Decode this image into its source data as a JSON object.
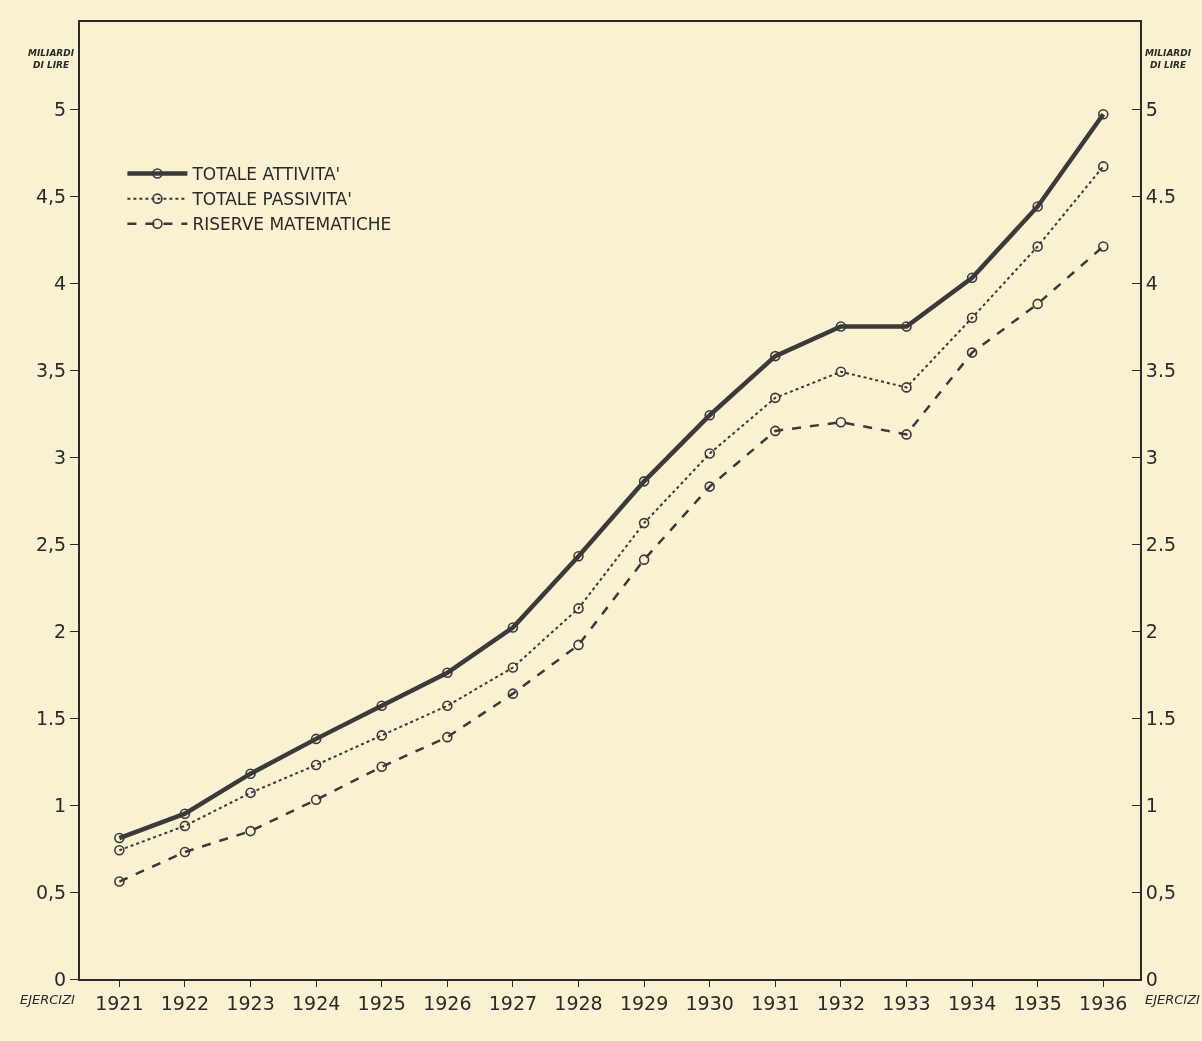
{
  "chart_data": {
    "type": "line",
    "categories": [
      "1921",
      "1922",
      "1923",
      "1924",
      "1925",
      "1926",
      "1927",
      "1928",
      "1929",
      "1930",
      "1931",
      "1932",
      "1933",
      "1934",
      "1935",
      "1936"
    ],
    "series": [
      {
        "name": "TOTALE ATTIVITA'",
        "color": "#3a3a3a",
        "line_style": "solid",
        "values": [
          0.81,
          0.95,
          1.18,
          1.38,
          1.57,
          1.76,
          2.02,
          2.43,
          2.86,
          3.24,
          3.58,
          3.75,
          3.75,
          4.03,
          4.44,
          4.97
        ]
      },
      {
        "name": "TOTALE PASSIVITA'",
        "color": "#3a3a3a",
        "line_style": "dotted",
        "values": [
          0.74,
          0.88,
          1.07,
          1.23,
          1.4,
          1.57,
          1.79,
          2.13,
          2.62,
          3.02,
          3.34,
          3.49,
          3.4,
          3.8,
          4.21,
          4.67
        ]
      },
      {
        "name": "RISERVE MATEMATICHE",
        "color": "#3a3a3a",
        "line_style": "dashed",
        "values": [
          0.56,
          0.73,
          0.85,
          1.03,
          1.22,
          1.39,
          1.64,
          1.92,
          2.41,
          2.83,
          3.15,
          3.2,
          3.13,
          3.6,
          3.88,
          4.21
        ]
      }
    ],
    "xlabel": "EJERCIZI",
    "ylabel": "MILIARDI DI LIRE",
    "y2label": "MILIARDI DI LIRE",
    "ylim": [
      0,
      5.5
    ],
    "yticks": [
      0,
      {
        "value": 0.5,
        "label": "0,5"
      },
      1,
      {
        "value": 1.5,
        "label": "1.5"
      },
      2,
      {
        "value": 2.5,
        "label": "2,5"
      },
      3,
      {
        "value": 3.5,
        "label": "3,5"
      },
      4,
      {
        "value": 4.5,
        "label": "4,5"
      },
      5
    ],
    "y2lim": [
      0,
      5.5
    ],
    "y2ticks": [
      0,
      {
        "value": 0.5,
        "label": "0,5"
      },
      1,
      {
        "value": 1.5,
        "label": "1.5"
      },
      2,
      {
        "value": 2.5,
        "label": "2.5"
      },
      3,
      {
        "value": 3.5,
        "label": "3.5"
      },
      4,
      {
        "value": 4.5,
        "label": "4.5"
      },
      5
    ],
    "marker": "circle",
    "grid": false,
    "legend": "top left"
  }
}
